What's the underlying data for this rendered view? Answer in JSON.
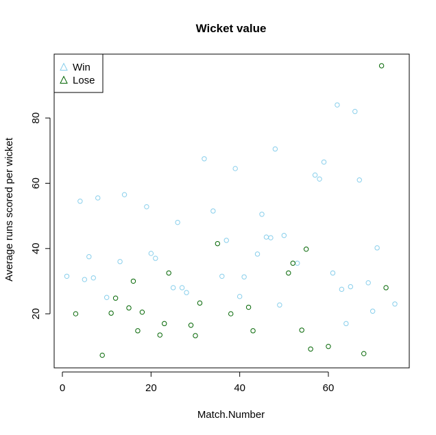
{
  "chart_data": {
    "type": "scatter",
    "title": "Wicket value",
    "xlabel": "Match.Number",
    "ylabel": "Average runs scored per wicket",
    "xlim": [
      0,
      75
    ],
    "ylim": [
      7,
      96
    ],
    "x_ticks": [
      0,
      20,
      40,
      60
    ],
    "y_ticks": [
      20,
      40,
      60,
      80
    ],
    "grid": false,
    "legend_position": "top-left",
    "series": [
      {
        "name": "Win",
        "color": "#87ceeb",
        "marker": "circle",
        "points": [
          [
            1,
            31.5
          ],
          [
            4,
            54.5
          ],
          [
            5,
            30.5
          ],
          [
            6,
            37.5
          ],
          [
            7,
            31
          ],
          [
            8,
            55.5
          ],
          [
            10,
            25
          ],
          [
            13,
            36
          ],
          [
            14,
            56.5
          ],
          [
            19,
            52.8
          ],
          [
            20,
            38.5
          ],
          [
            21,
            37
          ],
          [
            25,
            28
          ],
          [
            26,
            48
          ],
          [
            27,
            28
          ],
          [
            28,
            26.5
          ],
          [
            32,
            67.5
          ],
          [
            34,
            51.5
          ],
          [
            36,
            31.5
          ],
          [
            37,
            42.5
          ],
          [
            39,
            64.5
          ],
          [
            40,
            25.3
          ],
          [
            41,
            31.3
          ],
          [
            44,
            38.3
          ],
          [
            45,
            50.5
          ],
          [
            46,
            43.5
          ],
          [
            47,
            43.3
          ],
          [
            48,
            70.5
          ],
          [
            49,
            22.7
          ],
          [
            50,
            44
          ],
          [
            53,
            35.5
          ],
          [
            57,
            62.5
          ],
          [
            58,
            61.3
          ],
          [
            59,
            66.5
          ],
          [
            61,
            32.5
          ],
          [
            62,
            84
          ],
          [
            63,
            27.5
          ],
          [
            64,
            17
          ],
          [
            65,
            28.3
          ],
          [
            66,
            82
          ],
          [
            67,
            61
          ],
          [
            69,
            29.5
          ],
          [
            70,
            20.8
          ],
          [
            71,
            40.2
          ],
          [
            75,
            23
          ]
        ]
      },
      {
        "name": "Lose",
        "color": "#006400",
        "marker": "circle",
        "points": [
          [
            3,
            20
          ],
          [
            9,
            7.3
          ],
          [
            11,
            20.2
          ],
          [
            12,
            24.8
          ],
          [
            15,
            21.8
          ],
          [
            16,
            30
          ],
          [
            17,
            14.8
          ],
          [
            18,
            20.5
          ],
          [
            22,
            13.5
          ],
          [
            23,
            17
          ],
          [
            24,
            32.5
          ],
          [
            29,
            16.5
          ],
          [
            30,
            13.3
          ],
          [
            31,
            23.3
          ],
          [
            35,
            41.5
          ],
          [
            38,
            20
          ],
          [
            42,
            22
          ],
          [
            43,
            14.8
          ],
          [
            51,
            32.5
          ],
          [
            52,
            35.5
          ],
          [
            54,
            15
          ],
          [
            55,
            39.8
          ],
          [
            56,
            9.2
          ],
          [
            60,
            10
          ],
          [
            68,
            7.8
          ],
          [
            72,
            96
          ],
          [
            73,
            28
          ]
        ]
      }
    ]
  }
}
